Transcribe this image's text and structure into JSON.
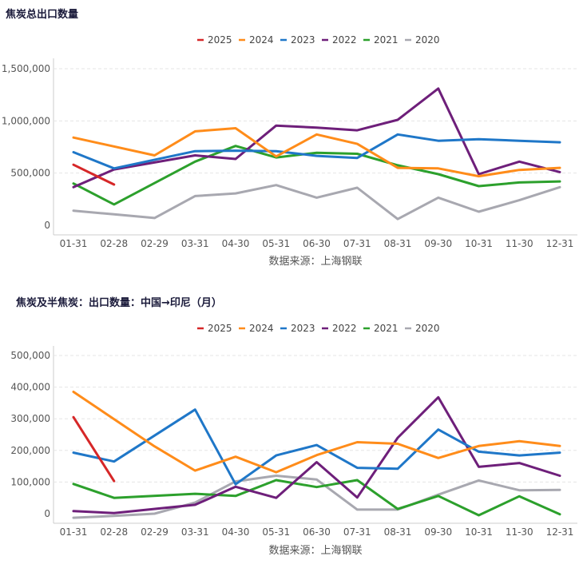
{
  "colors": {
    "series": [
      "#d62728",
      "#ff8c1a",
      "#1f77c8",
      "#6e1f7a",
      "#2ca02c",
      "#a8a8b0"
    ],
    "axis": "#cccccc",
    "grid": "#e5e5e5",
    "tick_text": "#555555",
    "title_text": "#1a1a3a"
  },
  "chart_data": [
    {
      "type": "line",
      "title": "焦炭总出口数量",
      "source": "数据来源：上海钢联",
      "categories": [
        "01-31",
        "02-28",
        "02-29",
        "03-31",
        "04-30",
        "05-31",
        "06-30",
        "07-31",
        "08-31",
        "09-30",
        "10-31",
        "11-30",
        "12-31"
      ],
      "y_ticks": [
        0,
        500000,
        1000000,
        1500000
      ],
      "y_tick_labels": [
        "0",
        "500,000",
        "1,000,000",
        "1,500,000"
      ],
      "ylim": [
        0,
        1500000
      ],
      "legend_position": "top-center",
      "grid": true,
      "series": [
        {
          "name": "2025",
          "values": [
            580000,
            390000,
            null,
            null,
            null,
            null,
            null,
            null,
            null,
            null,
            null,
            null,
            null
          ]
        },
        {
          "name": "2024",
          "values": [
            840000,
            null,
            670000,
            900000,
            930000,
            660000,
            870000,
            780000,
            550000,
            545000,
            470000,
            530000,
            550000
          ]
        },
        {
          "name": "2023",
          "values": [
            700000,
            545000,
            null,
            710000,
            715000,
            710000,
            665000,
            645000,
            870000,
            810000,
            825000,
            810000,
            795000
          ]
        },
        {
          "name": "2022",
          "values": [
            365000,
            535000,
            null,
            670000,
            635000,
            955000,
            935000,
            910000,
            1010000,
            1310000,
            490000,
            610000,
            510000
          ]
        },
        {
          "name": "2021",
          "values": [
            400000,
            200000,
            null,
            610000,
            760000,
            650000,
            695000,
            685000,
            575000,
            490000,
            375000,
            410000,
            420000
          ]
        },
        {
          "name": "2020",
          "values": [
            140000,
            105000,
            70000,
            280000,
            305000,
            385000,
            265000,
            360000,
            60000,
            265000,
            130000,
            240000,
            365000
          ]
        }
      ]
    },
    {
      "type": "line",
      "title": "焦炭及半焦炭：出口数量：中国→印尼（月）",
      "source": "数据来源：上海钢联",
      "categories": [
        "01-31",
        "02-28",
        "02-29",
        "03-31",
        "04-30",
        "05-31",
        "06-30",
        "07-31",
        "08-31",
        "09-30",
        "10-31",
        "11-30",
        "12-31"
      ],
      "y_ticks": [
        0,
        100000,
        200000,
        300000,
        400000,
        500000
      ],
      "y_tick_labels": [
        "0",
        "100,000",
        "200,000",
        "300,000",
        "400,000",
        "500,000"
      ],
      "ylim": [
        0,
        500000
      ],
      "legend_position": "top-center",
      "grid": true,
      "series": [
        {
          "name": "2025",
          "values": [
            305000,
            103000,
            null,
            null,
            null,
            null,
            null,
            null,
            null,
            null,
            null,
            null,
            null
          ]
        },
        {
          "name": "2024",
          "values": [
            385000,
            null,
            213000,
            136000,
            180000,
            131000,
            185000,
            226000,
            221000,
            176000,
            214000,
            229000,
            214000
          ]
        },
        {
          "name": "2023",
          "values": [
            193000,
            165000,
            null,
            329000,
            93000,
            184000,
            217000,
            145000,
            142000,
            266000,
            196000,
            184000,
            193000
          ]
        },
        {
          "name": "2022",
          "values": [
            8000,
            2000,
            null,
            28000,
            85000,
            50000,
            163000,
            51000,
            240000,
            368000,
            148000,
            160000,
            120000
          ]
        },
        {
          "name": "2021",
          "values": [
            94000,
            50000,
            null,
            63000,
            56000,
            106000,
            84000,
            106000,
            15000,
            56000,
            -5000,
            55000,
            -2000
          ]
        },
        {
          "name": "2020",
          "values": [
            -13000,
            -7000,
            0,
            35000,
            102000,
            120000,
            108000,
            13000,
            13000,
            60000,
            105000,
            74000,
            75000
          ]
        }
      ]
    }
  ]
}
